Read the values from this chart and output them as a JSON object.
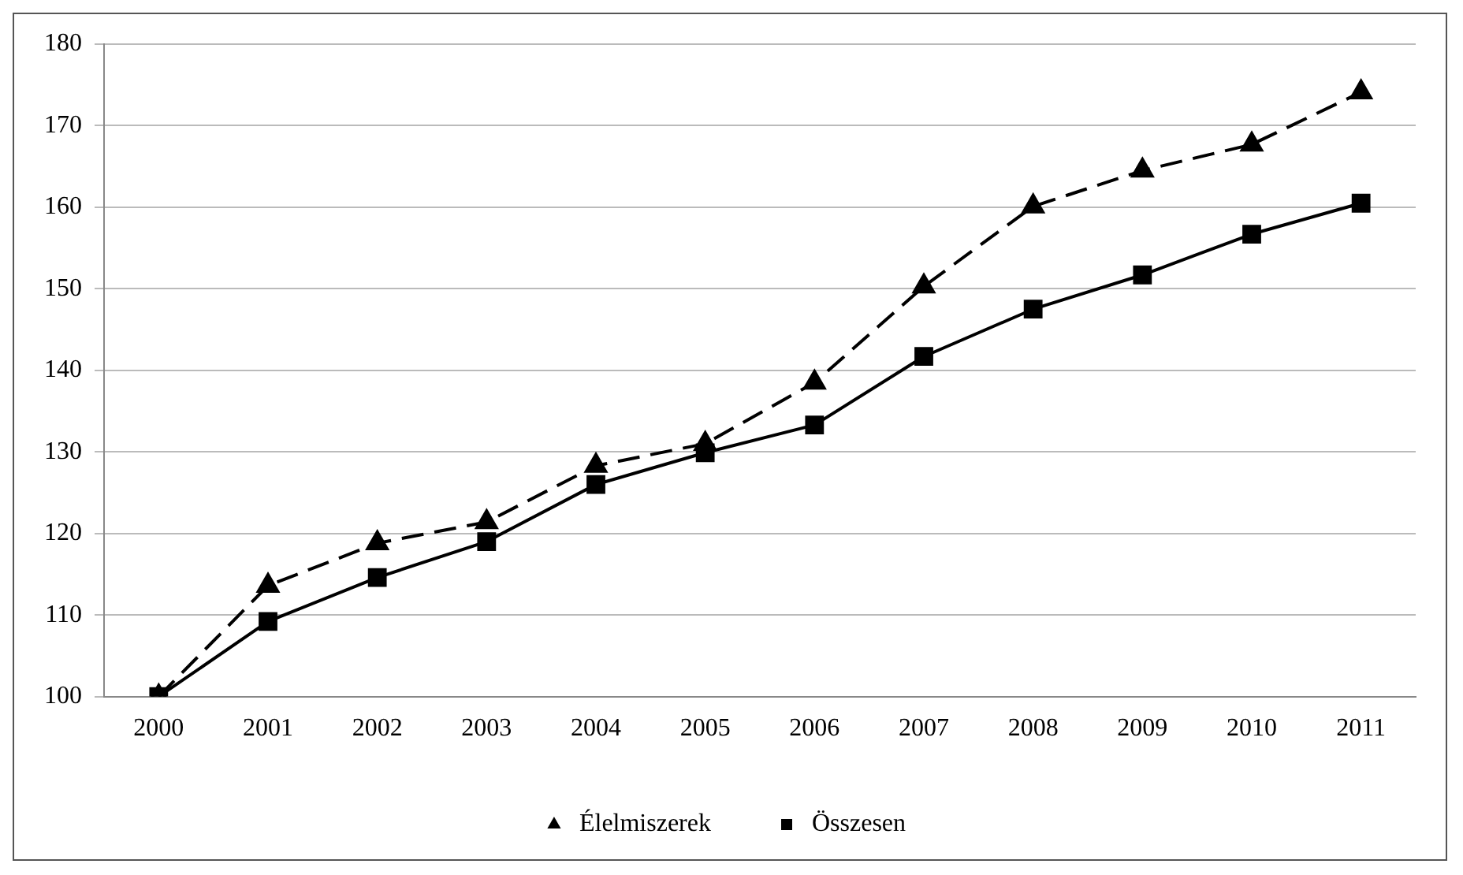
{
  "chart_data": {
    "type": "line",
    "categories": [
      "2000",
      "2001",
      "2002",
      "2003",
      "2004",
      "2005",
      "2006",
      "2007",
      "2008",
      "2009",
      "2010",
      "2011"
    ],
    "series": [
      {
        "name": "Élelmiszerek",
        "color": "#000000",
        "marker": "triangle",
        "line_style": "dashed",
        "values": [
          100,
          113.6,
          118.8,
          121.4,
          128.3,
          131,
          138.5,
          150.3,
          160.1,
          164.5,
          167.7,
          174.1
        ]
      },
      {
        "name": "Összesen",
        "color": "#000000",
        "marker": "square",
        "line_style": "solid",
        "values": [
          100,
          109.2,
          114.6,
          119,
          126,
          129.9,
          133.3,
          141.7,
          147.5,
          151.7,
          156.7,
          160.5
        ]
      }
    ],
    "ylim": [
      100,
      180
    ],
    "yticks": [
      100,
      110,
      120,
      130,
      140,
      150,
      160,
      170,
      180
    ],
    "grid": "y",
    "legend": "bottom"
  }
}
